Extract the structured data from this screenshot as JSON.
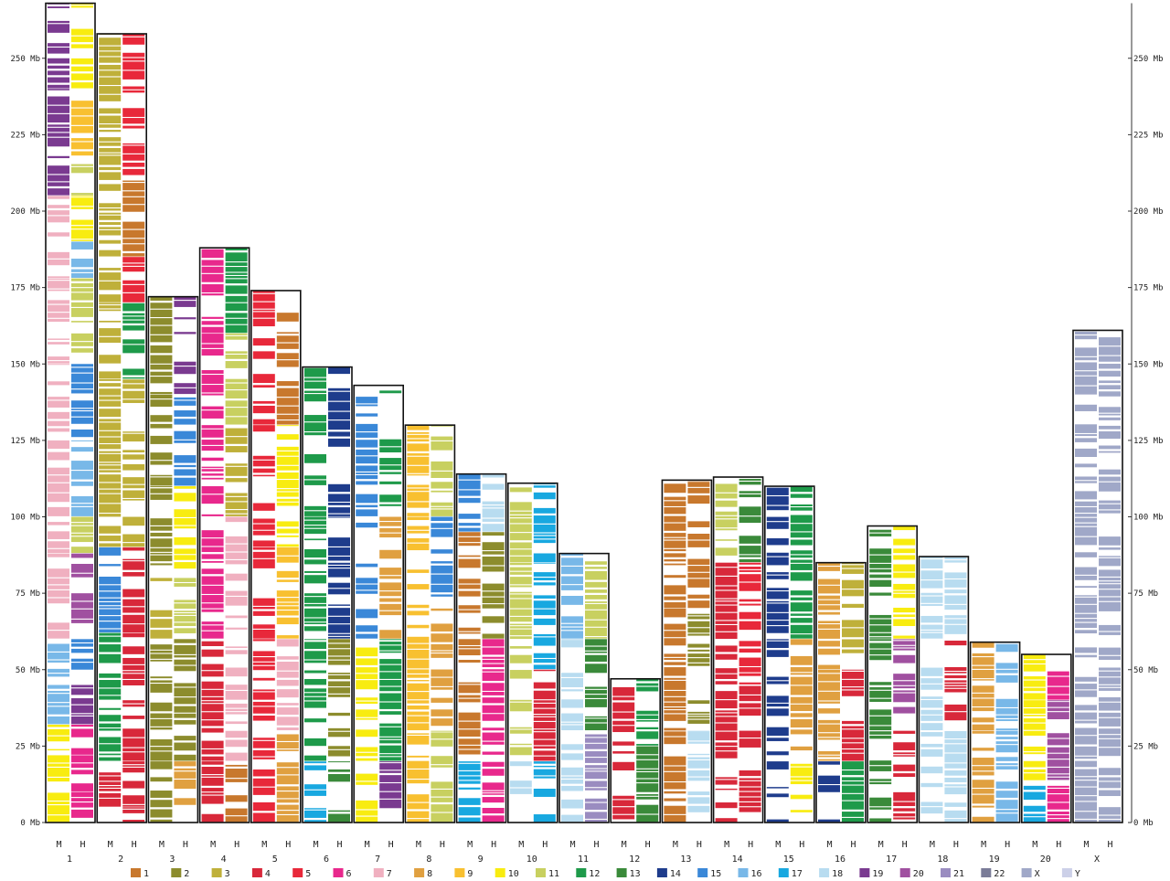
{
  "chart_data": {
    "type": "synteny-map",
    "y_axis": {
      "ticks": [
        0,
        25,
        50,
        75,
        100,
        125,
        150,
        175,
        200,
        225,
        250
      ],
      "tick_labels": [
        "0 Mb",
        "25 Mb",
        "50 Mb",
        "75 Mb",
        "100 Mb",
        "125 Mb",
        "150 Mb",
        "175 Mb",
        "200 Mb",
        "225 Mb",
        "250 Mb"
      ],
      "range": [
        0,
        268
      ]
    },
    "column_labels": [
      "M",
      "H"
    ],
    "legend": [
      {
        "label": "1",
        "color": "#c8782d"
      },
      {
        "label": "2",
        "color": "#8c8c2d"
      },
      {
        "label": "3",
        "color": "#bfb03a"
      },
      {
        "label": "4",
        "color": "#d8283a"
      },
      {
        "label": "5",
        "color": "#e8283a"
      },
      {
        "label": "6",
        "color": "#e8288c"
      },
      {
        "label": "7",
        "color": "#f0b0c0"
      },
      {
        "label": "8",
        "color": "#e0a040"
      },
      {
        "label": "9",
        "color": "#f8c030"
      },
      {
        "label": "10",
        "color": "#f8ec10"
      },
      {
        "label": "11",
        "color": "#c8d060"
      },
      {
        "label": "12",
        "color": "#1e9a4a"
      },
      {
        "label": "13",
        "color": "#3a8a3a"
      },
      {
        "label": "14",
        "color": "#1e3c8c"
      },
      {
        "label": "15",
        "color": "#3a88d8"
      },
      {
        "label": "16",
        "color": "#78b8e8"
      },
      {
        "label": "17",
        "color": "#18a8e0"
      },
      {
        "label": "18",
        "color": "#b8dcf0"
      },
      {
        "label": "19",
        "color": "#7a3a90"
      },
      {
        "label": "20",
        "color": "#a050a0"
      },
      {
        "label": "21",
        "color": "#9a8cc0"
      },
      {
        "label": "22",
        "color": "#7a7c98"
      },
      {
        "label": "X",
        "color": "#a0a8c8"
      },
      {
        "label": "Y",
        "color": "#ccd0e8"
      }
    ],
    "chromosomes": [
      {
        "name": "1",
        "length": 268,
        "segments": [
          {
            "from": 0,
            "to": 10,
            "m": "10",
            "h": "6"
          },
          {
            "from": 10,
            "to": 22,
            "m": "10",
            "h": "6"
          },
          {
            "from": 22,
            "to": 32,
            "m": "10",
            "h": "6"
          },
          {
            "from": 32,
            "to": 45,
            "m": "16",
            "h": "19"
          },
          {
            "from": 45,
            "to": 60,
            "m": "16",
            "h": "15"
          },
          {
            "from": 60,
            "to": 88,
            "m": "7",
            "h": "20"
          },
          {
            "from": 88,
            "to": 100,
            "m": "7",
            "h": "11"
          },
          {
            "from": 100,
            "to": 125,
            "m": "7",
            "h": "16"
          },
          {
            "from": 125,
            "to": 150,
            "m": "7",
            "h": "15"
          },
          {
            "from": 150,
            "to": 178,
            "m": "7",
            "h": "11"
          },
          {
            "from": 178,
            "to": 190,
            "m": "7",
            "h": "16"
          },
          {
            "from": 190,
            "to": 205,
            "m": "7",
            "h": "10"
          },
          {
            "from": 205,
            "to": 218,
            "m": "19",
            "h": "11"
          },
          {
            "from": 218,
            "to": 240,
            "m": "19",
            "h": "9"
          },
          {
            "from": 240,
            "to": 268,
            "m": "19",
            "h": "10"
          }
        ]
      },
      {
        "name": "2",
        "length": 258,
        "segments": [
          {
            "from": 0,
            "to": 5,
            "m": "12",
            "h": "4"
          },
          {
            "from": 5,
            "to": 20,
            "m": "4",
            "h": "4"
          },
          {
            "from": 20,
            "to": 40,
            "m": "12",
            "h": "4"
          },
          {
            "from": 40,
            "to": 62,
            "m": "12",
            "h": "4"
          },
          {
            "from": 62,
            "to": 90,
            "m": "15",
            "h": "4"
          },
          {
            "from": 90,
            "to": 145,
            "m": "3",
            "h": "3"
          },
          {
            "from": 145,
            "to": 170,
            "m": "3",
            "h": "12"
          },
          {
            "from": 170,
            "to": 185,
            "m": "3",
            "h": "5"
          },
          {
            "from": 185,
            "to": 210,
            "m": "3",
            "h": "1"
          },
          {
            "from": 210,
            "to": 258,
            "m": "3",
            "h": "5"
          }
        ]
      },
      {
        "name": "3",
        "length": 172,
        "segments": [
          {
            "from": 0,
            "to": 20,
            "m": "2",
            "h": "8"
          },
          {
            "from": 20,
            "to": 60,
            "m": "2",
            "h": "2"
          },
          {
            "from": 60,
            "to": 80,
            "m": "3",
            "h": "11"
          },
          {
            "from": 80,
            "to": 110,
            "m": "2",
            "h": "10"
          },
          {
            "from": 110,
            "to": 140,
            "m": "2",
            "h": "15"
          },
          {
            "from": 140,
            "to": 172,
            "m": "2",
            "h": "19"
          }
        ]
      },
      {
        "name": "4",
        "length": 188,
        "segments": [
          {
            "from": 0,
            "to": 20,
            "m": "4",
            "h": "1"
          },
          {
            "from": 20,
            "to": 60,
            "m": "4",
            "h": "7"
          },
          {
            "from": 60,
            "to": 100,
            "m": "6",
            "h": "7"
          },
          {
            "from": 100,
            "to": 130,
            "m": "6",
            "h": "3"
          },
          {
            "from": 130,
            "to": 160,
            "m": "6",
            "h": "11"
          },
          {
            "from": 160,
            "to": 188,
            "m": "6",
            "h": "12"
          }
        ]
      },
      {
        "name": "5",
        "length": 174,
        "segments": [
          {
            "from": 0,
            "to": 30,
            "m": "5",
            "h": "8"
          },
          {
            "from": 30,
            "to": 60,
            "m": "5",
            "h": "7"
          },
          {
            "from": 60,
            "to": 90,
            "m": "5",
            "h": "9"
          },
          {
            "from": 90,
            "to": 130,
            "m": "5",
            "h": "10"
          },
          {
            "from": 130,
            "to": 174,
            "m": "5",
            "h": "1"
          }
        ]
      },
      {
        "name": "6",
        "length": 149,
        "segments": [
          {
            "from": 0,
            "to": 20,
            "m": "17",
            "h": "13"
          },
          {
            "from": 20,
            "to": 60,
            "m": "12",
            "h": "2"
          },
          {
            "from": 60,
            "to": 100,
            "m": "12",
            "h": "14"
          },
          {
            "from": 100,
            "to": 149,
            "m": "12",
            "h": "14"
          }
        ]
      },
      {
        "name": "7",
        "length": 143,
        "segments": [
          {
            "from": 0,
            "to": 20,
            "m": "10",
            "h": "19"
          },
          {
            "from": 20,
            "to": 60,
            "m": "10",
            "h": "12"
          },
          {
            "from": 60,
            "to": 100,
            "m": "15",
            "h": "8"
          },
          {
            "from": 100,
            "to": 143,
            "m": "15",
            "h": "12"
          }
        ]
      },
      {
        "name": "8",
        "length": 130,
        "segments": [
          {
            "from": 0,
            "to": 30,
            "m": "9",
            "h": "11"
          },
          {
            "from": 30,
            "to": 70,
            "m": "9",
            "h": "8"
          },
          {
            "from": 70,
            "to": 100,
            "m": "9",
            "h": "15"
          },
          {
            "from": 100,
            "to": 130,
            "m": "9",
            "h": "11"
          }
        ]
      },
      {
        "name": "9",
        "length": 114,
        "segments": [
          {
            "from": 0,
            "to": 20,
            "m": "17",
            "h": "6"
          },
          {
            "from": 20,
            "to": 60,
            "m": "1",
            "h": "6"
          },
          {
            "from": 60,
            "to": 95,
            "m": "1",
            "h": "2"
          },
          {
            "from": 95,
            "to": 114,
            "m": "15",
            "h": "18"
          }
        ]
      },
      {
        "name": "10",
        "length": 111,
        "segments": [
          {
            "from": 0,
            "to": 20,
            "m": "18",
            "h": "17"
          },
          {
            "from": 20,
            "to": 50,
            "m": "11",
            "h": "4"
          },
          {
            "from": 50,
            "to": 85,
            "m": "11",
            "h": "17"
          },
          {
            "from": 85,
            "to": 111,
            "m": "11",
            "h": "17"
          }
        ]
      },
      {
        "name": "11",
        "length": 88,
        "segments": [
          {
            "from": 0,
            "to": 30,
            "m": "18",
            "h": "21"
          },
          {
            "from": 30,
            "to": 60,
            "m": "18",
            "h": "13"
          },
          {
            "from": 60,
            "to": 88,
            "m": "16",
            "h": "11"
          }
        ]
      },
      {
        "name": "12",
        "length": 47,
        "segments": [
          {
            "from": 0,
            "to": 25,
            "m": "4",
            "h": "13"
          },
          {
            "from": 25,
            "to": 47,
            "m": "4",
            "h": "12"
          }
        ]
      },
      {
        "name": "13",
        "length": 112,
        "segments": [
          {
            "from": 0,
            "to": 30,
            "m": "1",
            "h": "18"
          },
          {
            "from": 30,
            "to": 70,
            "m": "1",
            "h": "2"
          },
          {
            "from": 70,
            "to": 112,
            "m": "1",
            "h": "1"
          }
        ]
      },
      {
        "name": "14",
        "length": 113,
        "segments": [
          {
            "from": 0,
            "to": 45,
            "m": "4",
            "h": "4"
          },
          {
            "from": 45,
            "to": 85,
            "m": "4",
            "h": "5"
          },
          {
            "from": 85,
            "to": 113,
            "m": "11",
            "h": "13"
          }
        ]
      },
      {
        "name": "15",
        "length": 110,
        "segments": [
          {
            "from": 0,
            "to": 20,
            "m": "14",
            "h": "10"
          },
          {
            "from": 20,
            "to": 60,
            "m": "14",
            "h": "8"
          },
          {
            "from": 60,
            "to": 110,
            "m": "14",
            "h": "12"
          }
        ]
      },
      {
        "name": "16",
        "length": 85,
        "segments": [
          {
            "from": 0,
            "to": 20,
            "m": "14",
            "h": "12"
          },
          {
            "from": 20,
            "to": 50,
            "m": "8",
            "h": "4"
          },
          {
            "from": 50,
            "to": 85,
            "m": "8",
            "h": "3"
          }
        ]
      },
      {
        "name": "17",
        "length": 97,
        "segments": [
          {
            "from": 0,
            "to": 30,
            "m": "13",
            "h": "4"
          },
          {
            "from": 30,
            "to": 60,
            "m": "13",
            "h": "20"
          },
          {
            "from": 60,
            "to": 97,
            "m": "13",
            "h": "10"
          }
        ]
      },
      {
        "name": "18",
        "length": 87,
        "segments": [
          {
            "from": 0,
            "to": 30,
            "m": "18",
            "h": "18"
          },
          {
            "from": 30,
            "to": 60,
            "m": "18",
            "h": "4"
          },
          {
            "from": 60,
            "to": 87,
            "m": "18",
            "h": "18"
          }
        ]
      },
      {
        "name": "19",
        "length": 59,
        "segments": [
          {
            "from": 0,
            "to": 30,
            "m": "8",
            "h": "16"
          },
          {
            "from": 30,
            "to": 59,
            "m": "8",
            "h": "16"
          }
        ]
      },
      {
        "name": "20",
        "length": 55,
        "segments": [
          {
            "from": 0,
            "to": 12,
            "m": "17",
            "h": "6"
          },
          {
            "from": 12,
            "to": 40,
            "m": "10",
            "h": "20"
          },
          {
            "from": 40,
            "to": 55,
            "m": "10",
            "h": "6"
          }
        ]
      },
      {
        "name": "X",
        "length": 161,
        "segments": [
          {
            "from": 0,
            "to": 161,
            "m": "X",
            "h": "X"
          }
        ]
      }
    ]
  }
}
